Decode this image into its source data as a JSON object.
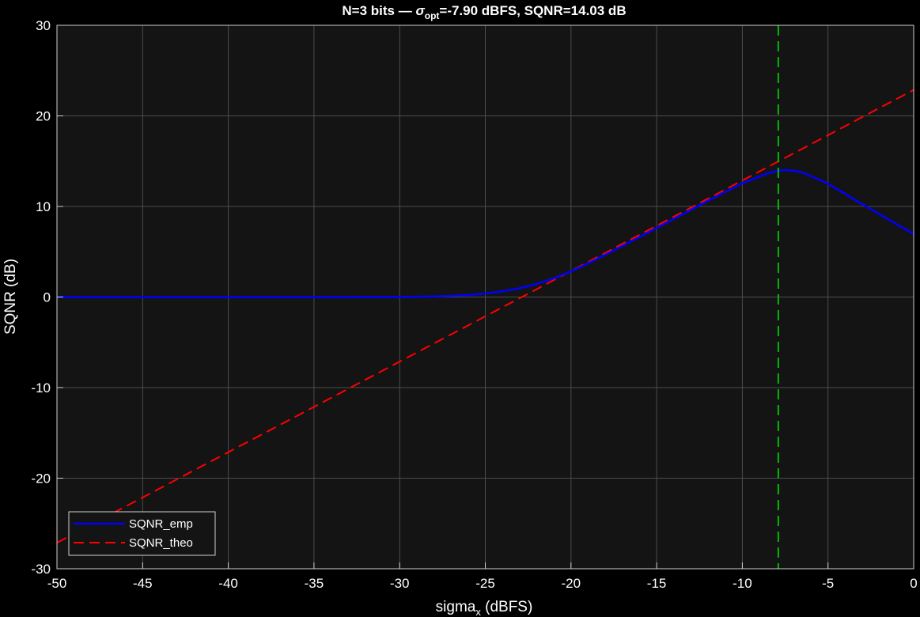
{
  "chart_data": {
    "type": "line",
    "title": {
      "prefix": "N=3  bits  —  ",
      "sigma": "σ",
      "sigma_sub": "opt",
      "suffix": "=-7.90  dBFS,  SQNR=14.03  dB"
    },
    "xlabel": {
      "main": "sigma",
      "sub": "x",
      "rest": "  (dBFS)"
    },
    "ylabel": "SQNR (dB)",
    "xlim": [
      -50,
      0
    ],
    "ylim": [
      -30,
      30
    ],
    "xticks": [
      -50,
      -45,
      -40,
      -35,
      -30,
      -25,
      -20,
      -15,
      -10,
      -5,
      0
    ],
    "yticks": [
      -30,
      -20,
      -10,
      0,
      10,
      20,
      30
    ],
    "grid": true,
    "legend_position": "bottom-left",
    "colors": {
      "background": "#000000",
      "axes_bg": "#141414",
      "grid": "#4d4d4d",
      "empirical": "#0000ff",
      "theoretical": "#ff0000",
      "optimum": "#00bb00"
    },
    "series": [
      {
        "name": "SQNR_emp",
        "style": "solid",
        "x": [
          -50,
          -35,
          -30,
          -29,
          -28,
          -27,
          -26,
          -25,
          -24,
          -23,
          -22,
          -21,
          -20,
          -19,
          -18,
          -17,
          -16,
          -15,
          -14,
          -13,
          -12,
          -11,
          -10,
          -9,
          -8.5,
          -8,
          -7.5,
          -7,
          -6.5,
          -6,
          -5.5,
          -5,
          -4.5,
          -4,
          -3.5,
          -3,
          -2.5,
          -2,
          -1.5,
          -1,
          -0.5,
          0
        ],
        "y": [
          0,
          0,
          0.01,
          0.03,
          0.06,
          0.12,
          0.22,
          0.38,
          0.62,
          0.97,
          1.45,
          2.07,
          2.83,
          3.72,
          4.67,
          5.65,
          6.63,
          7.62,
          8.63,
          9.63,
          10.63,
          11.6,
          12.55,
          13.3,
          13.65,
          13.92,
          14.03,
          13.95,
          13.75,
          13.35,
          12.95,
          12.5,
          11.95,
          11.4,
          10.8,
          10.25,
          9.7,
          9.15,
          8.6,
          8.05,
          7.5,
          6.95
        ]
      },
      {
        "name": "SQNR_theo",
        "style": "dashed",
        "x": [
          -50,
          0
        ],
        "y": [
          -27.13,
          22.87
        ]
      }
    ],
    "vline": {
      "x": -7.9
    }
  }
}
